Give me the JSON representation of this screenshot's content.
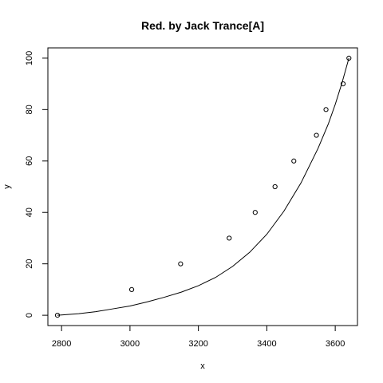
{
  "chart_data": {
    "type": "scatter",
    "title": "Red. by Jack Trance[A]",
    "xlabel": "x",
    "ylabel": "y",
    "xlim": [
      2760,
      3665
    ],
    "ylim": [
      -4,
      104
    ],
    "x_ticks": [
      2800,
      3000,
      3200,
      3400,
      3600
    ],
    "y_ticks": [
      0,
      20,
      40,
      60,
      80,
      100
    ],
    "grid": false,
    "legend": "none",
    "colors": {
      "axis": "#000000",
      "points": "#000000",
      "curve": "#000000",
      "background": "#ffffff"
    },
    "series": [
      {
        "kind": "points",
        "x": [
          2788,
          3005,
          3148,
          3290,
          3366,
          3424,
          3479,
          3545,
          3573,
          3623,
          3640
        ],
        "y": [
          0,
          10,
          20,
          30,
          40,
          50,
          60,
          70,
          80,
          90,
          100
        ]
      },
      {
        "kind": "line",
        "x": [
          2788,
          2850,
          2900,
          2950,
          3000,
          3050,
          3100,
          3150,
          3200,
          3250,
          3300,
          3350,
          3400,
          3450,
          3500,
          3550,
          3580,
          3600,
          3620,
          3640
        ],
        "y": [
          0,
          0.6,
          1.4,
          2.5,
          3.6,
          5.2,
          7.0,
          9.0,
          11.5,
          14.7,
          19.0,
          24.5,
          31.5,
          40.5,
          51.5,
          65.0,
          74.5,
          82.0,
          90.5,
          100
        ]
      }
    ]
  }
}
